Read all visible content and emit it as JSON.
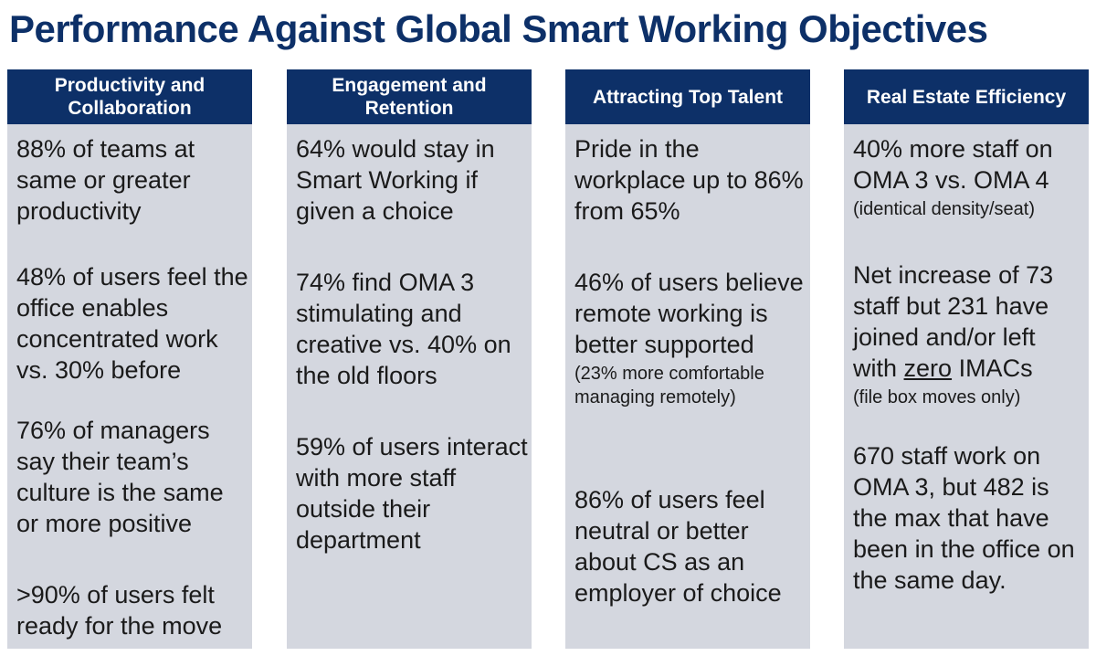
{
  "title": "Performance Against Global Smart Working Objectives",
  "colors": {
    "header_bg": "#0d3068",
    "column_bg": "#d4d7df",
    "title": "#0d3068"
  },
  "columns": [
    {
      "header": "Productivity and Collaboration",
      "items": [
        "88% of teams at same or greater productivity",
        "48% of users feel the office enables concentrated work vs. 30% before",
        "76% of managers say their team’s culture is the same or more positive",
        ">90% of users felt ready for the move"
      ]
    },
    {
      "header": "Engagement and Retention",
      "items": [
        "64% would stay in Smart Working if given a choice",
        "74% find OMA 3 stimulating and creative vs. 40% on the old floors",
        "59% of users interact with more staff outside their department"
      ]
    },
    {
      "header": "Attracting Top Talent",
      "items": [
        "Pride in the workplace up to 86% from 65%",
        "46% of users believe remote working is better supported",
        "86% of users feel neutral or better about CS as an employer of choice"
      ],
      "notes": {
        "remote": "(23% more comfortable managing remotely)"
      }
    },
    {
      "header": "Real Estate Efficiency",
      "items": [
        "40% more staff on OMA 3 vs. OMA 4",
        "Net increase of 73 staff but 231 have joined and/or left with",
        "670 staff work on OMA 3, but 482 is the max that have been in the office on the same day."
      ],
      "notes": {
        "density": "(identical density/seat)",
        "zero": "zero",
        "imacs": " IMACs",
        "file_box": "(file box moves only)"
      }
    }
  ]
}
